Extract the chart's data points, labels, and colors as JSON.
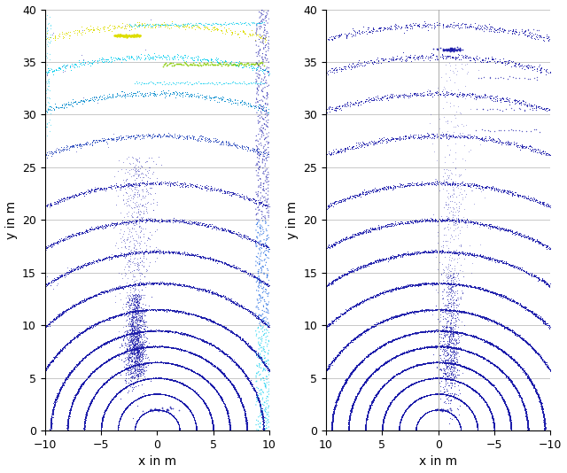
{
  "fig_width": 6.4,
  "fig_height": 5.34,
  "dpi": 100,
  "left_xlim": [
    -10,
    10
  ],
  "left_ylim": [
    0,
    40
  ],
  "right_xlim": [
    10,
    -10
  ],
  "right_ylim": [
    0,
    40
  ],
  "xlabel": "x in m",
  "ylabel": "y in m",
  "yticks": [
    0,
    5,
    10,
    15,
    20,
    25,
    30,
    35,
    40
  ],
  "xticks_left": [
    -10,
    -5,
    0,
    5,
    10
  ],
  "xticks_right": [
    10,
    5,
    0,
    -5,
    -10
  ],
  "grid_color": "#c8c8c8",
  "background_color": "#ffffff",
  "arc_radii": [
    2,
    3.5,
    5,
    6.5,
    8,
    9.5,
    11.5,
    14,
    17,
    20,
    23.5,
    28,
    32,
    35.5,
    38.5
  ],
  "blue_color": "#1a1aaa",
  "cyan_color": "#00ccee",
  "yellow_color": "#dddd00",
  "green_color": "#88cc00",
  "seed": 7
}
